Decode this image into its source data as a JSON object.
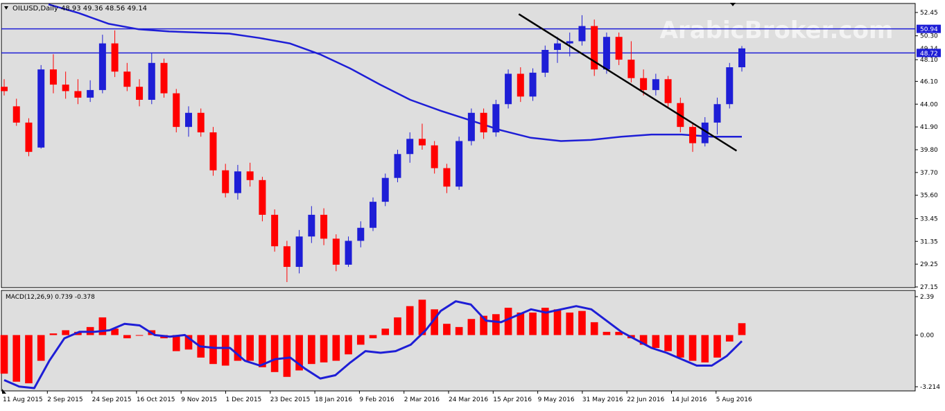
{
  "chart_data": [
    {
      "type": "candlestick",
      "header": {
        "symbol_line": "OILUSD,Daily",
        "ohlc": "48.93 49.36 48.56 49.14"
      },
      "watermark": "ArabicBroker.com",
      "price_axis_ticks": [
        "52.45",
        "50.30",
        "48.10",
        "46.10",
        "44.00",
        "41.90",
        "39.80",
        "37.70",
        "35.60",
        "33.45",
        "31.35",
        "29.25",
        "27.15"
      ],
      "ylim": [
        27.15,
        52.45
      ],
      "horizontal_levels": [
        {
          "label": "50.94",
          "value": 50.94
        },
        {
          "label": "48.72",
          "value": 48.72
        }
      ],
      "hidden_price_label": "49.14",
      "moving_average": {
        "values": [
          53.2,
          52.4,
          51.4,
          50.9,
          50.7,
          50.6,
          50.5,
          50.1,
          49.6,
          48.6,
          47.3,
          45.8,
          44.4,
          43.4,
          42.5,
          41.6,
          40.9,
          40.6,
          40.7,
          41.0,
          41.2,
          41.2,
          41.0,
          41.0
        ],
        "color": "#1e1ed6"
      },
      "trendline": {
        "from": [
          "2016-05-25",
          52.3
        ],
        "to": [
          "2016-09-26",
          39.7
        ]
      },
      "candles": [
        {
          "date": "2015-08-06",
          "open": 45.6,
          "high": 46.3,
          "low": 44.8,
          "close": 45.2
        },
        {
          "date": "2015-08-13",
          "open": 43.8,
          "high": 44.5,
          "low": 42.0,
          "close": 42.3
        },
        {
          "date": "2015-08-20",
          "open": 42.3,
          "high": 42.7,
          "low": 39.2,
          "close": 39.6
        },
        {
          "date": "2015-08-27",
          "open": 40.0,
          "high": 47.6,
          "low": 39.9,
          "close": 47.2
        },
        {
          "date": "2015-09-03",
          "open": 47.2,
          "high": 48.6,
          "low": 45.0,
          "close": 45.8
        },
        {
          "date": "2015-09-10",
          "open": 45.8,
          "high": 47.0,
          "low": 44.5,
          "close": 45.2
        },
        {
          "date": "2015-09-17",
          "open": 45.2,
          "high": 46.3,
          "low": 44.0,
          "close": 44.6
        },
        {
          "date": "2015-09-24",
          "open": 44.6,
          "high": 46.2,
          "low": 44.2,
          "close": 45.3
        },
        {
          "date": "2015-10-01",
          "open": 45.3,
          "high": 50.4,
          "low": 45.0,
          "close": 49.6
        },
        {
          "date": "2015-10-08",
          "open": 49.6,
          "high": 50.8,
          "low": 46.5,
          "close": 47.0
        },
        {
          "date": "2015-10-15",
          "open": 47.0,
          "high": 47.8,
          "low": 45.2,
          "close": 45.6
        },
        {
          "date": "2015-10-22",
          "open": 45.6,
          "high": 46.3,
          "low": 43.8,
          "close": 44.4
        },
        {
          "date": "2015-10-29",
          "open": 44.4,
          "high": 48.7,
          "low": 44.0,
          "close": 47.8
        },
        {
          "date": "2015-11-05",
          "open": 47.8,
          "high": 48.2,
          "low": 44.6,
          "close": 45.0
        },
        {
          "date": "2015-11-12",
          "open": 45.0,
          "high": 45.4,
          "low": 41.4,
          "close": 41.9
        },
        {
          "date": "2015-11-19",
          "open": 41.9,
          "high": 43.8,
          "low": 41.0,
          "close": 43.2
        },
        {
          "date": "2015-11-26",
          "open": 43.2,
          "high": 43.6,
          "low": 41.0,
          "close": 41.4
        },
        {
          "date": "2015-12-03",
          "open": 41.4,
          "high": 41.9,
          "low": 37.4,
          "close": 37.9
        },
        {
          "date": "2015-12-10",
          "open": 37.9,
          "high": 38.5,
          "low": 35.4,
          "close": 35.8
        },
        {
          "date": "2015-12-17",
          "open": 35.8,
          "high": 38.4,
          "low": 35.2,
          "close": 37.8
        },
        {
          "date": "2015-12-24",
          "open": 37.8,
          "high": 38.6,
          "low": 36.4,
          "close": 37.0
        },
        {
          "date": "2015-12-31",
          "open": 37.0,
          "high": 37.3,
          "low": 33.2,
          "close": 33.8
        },
        {
          "date": "2016-01-07",
          "open": 33.8,
          "high": 34.3,
          "low": 30.4,
          "close": 30.9
        },
        {
          "date": "2016-01-14",
          "open": 30.9,
          "high": 31.4,
          "low": 27.6,
          "close": 29.0
        },
        {
          "date": "2016-01-21",
          "open": 29.0,
          "high": 32.4,
          "low": 28.4,
          "close": 31.8
        },
        {
          "date": "2016-01-28",
          "open": 31.8,
          "high": 34.6,
          "low": 31.2,
          "close": 33.8
        },
        {
          "date": "2016-02-04",
          "open": 33.8,
          "high": 34.4,
          "low": 31.0,
          "close": 31.6
        },
        {
          "date": "2016-02-11",
          "open": 31.6,
          "high": 32.0,
          "low": 28.6,
          "close": 29.2
        },
        {
          "date": "2016-02-18",
          "open": 29.2,
          "high": 31.8,
          "low": 29.0,
          "close": 31.4
        },
        {
          "date": "2016-02-25",
          "open": 31.4,
          "high": 33.2,
          "low": 30.8,
          "close": 32.6
        },
        {
          "date": "2016-03-03",
          "open": 32.6,
          "high": 35.4,
          "low": 32.3,
          "close": 35.0
        },
        {
          "date": "2016-03-10",
          "open": 35.0,
          "high": 37.6,
          "low": 34.6,
          "close": 37.2
        },
        {
          "date": "2016-03-17",
          "open": 37.2,
          "high": 39.8,
          "low": 36.8,
          "close": 39.4
        },
        {
          "date": "2016-03-24",
          "open": 39.4,
          "high": 41.4,
          "low": 38.6,
          "close": 40.8
        },
        {
          "date": "2016-03-31",
          "open": 40.8,
          "high": 42.2,
          "low": 39.8,
          "close": 40.2
        },
        {
          "date": "2016-04-07",
          "open": 40.2,
          "high": 40.6,
          "low": 37.6,
          "close": 38.1
        },
        {
          "date": "2016-04-14",
          "open": 38.1,
          "high": 38.5,
          "low": 35.8,
          "close": 36.4
        },
        {
          "date": "2016-04-21",
          "open": 36.4,
          "high": 41.0,
          "low": 36.1,
          "close": 40.6
        },
        {
          "date": "2016-04-28",
          "open": 40.6,
          "high": 43.6,
          "low": 40.2,
          "close": 43.2
        },
        {
          "date": "2016-05-05",
          "open": 43.2,
          "high": 43.6,
          "low": 40.8,
          "close": 41.4
        },
        {
          "date": "2016-05-12",
          "open": 41.4,
          "high": 44.4,
          "low": 41.0,
          "close": 44.0
        },
        {
          "date": "2016-05-19",
          "open": 44.0,
          "high": 47.2,
          "low": 43.6,
          "close": 46.8
        },
        {
          "date": "2016-05-26",
          "open": 46.8,
          "high": 47.4,
          "low": 44.2,
          "close": 44.7
        },
        {
          "date": "2016-06-02",
          "open": 44.7,
          "high": 47.3,
          "low": 44.3,
          "close": 46.9
        },
        {
          "date": "2016-06-09",
          "open": 46.9,
          "high": 49.4,
          "low": 46.5,
          "close": 49.0
        },
        {
          "date": "2016-06-16",
          "open": 49.0,
          "high": 50.2,
          "low": 47.8,
          "close": 49.6
        },
        {
          "date": "2016-06-23",
          "open": 49.6,
          "high": 50.6,
          "low": 48.4,
          "close": 49.8
        },
        {
          "date": "2016-06-30",
          "open": 49.8,
          "high": 52.2,
          "low": 49.4,
          "close": 51.2
        },
        {
          "date": "2016-07-07",
          "open": 51.2,
          "high": 51.8,
          "low": 46.6,
          "close": 47.2
        },
        {
          "date": "2016-07-14",
          "open": 47.2,
          "high": 50.6,
          "low": 46.8,
          "close": 50.2
        },
        {
          "date": "2016-07-21",
          "open": 50.2,
          "high": 50.6,
          "low": 47.6,
          "close": 48.1
        },
        {
          "date": "2016-07-28",
          "open": 48.1,
          "high": 49.8,
          "low": 46.0,
          "close": 46.4
        },
        {
          "date": "2016-08-04",
          "open": 46.4,
          "high": 47.2,
          "low": 44.8,
          "close": 45.3
        },
        {
          "date": "2016-08-11",
          "open": 45.3,
          "high": 46.8,
          "low": 44.8,
          "close": 46.3
        },
        {
          "date": "2016-08-18",
          "open": 46.3,
          "high": 46.6,
          "low": 43.6,
          "close": 44.1
        },
        {
          "date": "2016-08-25",
          "open": 44.1,
          "high": 44.6,
          "low": 41.4,
          "close": 41.9
        },
        {
          "date": "2016-09-01",
          "open": 41.9,
          "high": 42.2,
          "low": 39.6,
          "close": 40.4
        },
        {
          "date": "2016-09-08",
          "open": 40.4,
          "high": 42.8,
          "low": 40.1,
          "close": 42.3
        },
        {
          "date": "2016-09-15",
          "open": 42.3,
          "high": 44.6,
          "low": 41.2,
          "close": 44.0
        },
        {
          "date": "2016-09-22",
          "open": 44.0,
          "high": 47.8,
          "low": 43.6,
          "close": 47.4
        },
        {
          "date": "2016-09-29",
          "open": 47.4,
          "high": 49.36,
          "low": 47.0,
          "close": 49.14
        }
      ]
    },
    {
      "type": "histogram",
      "label": "MACD(12,26,9) 0.739 -0.378",
      "ylim": [
        -3.214,
        2.39
      ],
      "ticks": [
        "2.39",
        "0.00",
        "-3.214"
      ],
      "histogram": [
        -2.4,
        -2.9,
        -3.0,
        -1.6,
        0.1,
        0.3,
        0.2,
        0.5,
        1.1,
        0.4,
        -0.2,
        0.0,
        0.3,
        -0.2,
        -1.0,
        -0.9,
        -1.4,
        -1.8,
        -1.9,
        -1.6,
        -1.6,
        -2.0,
        -2.3,
        -2.6,
        -2.2,
        -1.8,
        -1.7,
        -1.6,
        -1.2,
        -0.6,
        -0.2,
        0.4,
        1.1,
        1.8,
        2.2,
        1.6,
        0.7,
        0.5,
        1.0,
        1.2,
        1.3,
        1.7,
        1.4,
        1.4,
        1.7,
        1.6,
        1.4,
        1.5,
        0.8,
        0.2,
        0.2,
        -0.2,
        -0.6,
        -0.8,
        -1.0,
        -1.4,
        -1.6,
        -1.7,
        -1.4,
        -0.4,
        0.739
      ],
      "signal": [
        -2.8,
        -3.2,
        -3.3,
        -1.6,
        -0.2,
        0.2,
        0.2,
        0.3,
        0.7,
        0.6,
        0.0,
        -0.1,
        0.0,
        -0.7,
        -0.8,
        -0.8,
        -1.6,
        -1.9,
        -1.5,
        -1.4,
        -2.1,
        -2.7,
        -2.5,
        -1.7,
        -1.0,
        -1.1,
        -1.0,
        -0.6,
        0.3,
        1.5,
        2.1,
        1.9,
        0.9,
        0.8,
        1.2,
        1.6,
        1.4,
        1.6,
        1.8,
        1.6,
        0.9,
        0.2,
        -0.3,
        -0.8,
        -1.1,
        -1.5,
        -1.9,
        -1.9,
        -1.3,
        -0.378
      ],
      "histogram_color": "#ff0000",
      "signal_color": "#1e1ed6"
    }
  ],
  "x_axis_labels": [
    "11 Aug 2015",
    "2 Sep 2015",
    "24 Sep 2015",
    "16 Oct 2015",
    "9 Nov 2015",
    "1 Dec 2015",
    "23 Dec 2015",
    "18 Jan 2016",
    "9 Feb 2016",
    "2 Mar 2016",
    "24 Mar 2016",
    "15 Apr 2016",
    "9 May 2016",
    "31 May 2016",
    "22 Jun 2016",
    "14 Jul 2016",
    "5 Aug 2016"
  ],
  "colors": {
    "background": "#ffffff",
    "plot_background": "#dedede",
    "bull": "#1e1ed6",
    "bear": "#ff0000",
    "level_line": "#1e1ed6",
    "trendline": "#000000",
    "axis_text": "#000000",
    "watermark": "#ffffff"
  }
}
